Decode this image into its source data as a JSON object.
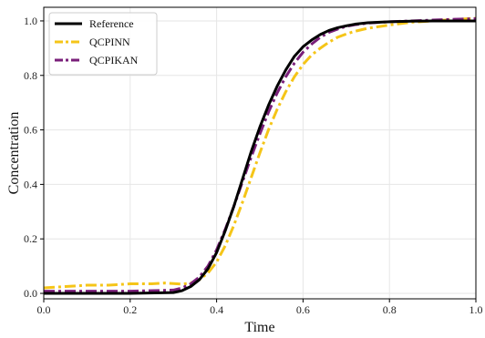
{
  "chart_data": {
    "type": "line",
    "title": "",
    "xlabel": "Time",
    "ylabel": "Concentration",
    "xlim": [
      0.0,
      1.0
    ],
    "ylim": [
      -0.02,
      1.05
    ],
    "xticks": [
      "0.0",
      "0.2",
      "0.4",
      "0.6",
      "0.8",
      "1.0"
    ],
    "yticks": [
      "0.0",
      "0.2",
      "0.4",
      "0.6",
      "0.8",
      "1.0"
    ],
    "grid": true,
    "legend_position": "top-left",
    "series": [
      {
        "name": "Reference",
        "color": "#000000",
        "style": "solid",
        "x": [
          0.0,
          0.1,
          0.2,
          0.3,
          0.32,
          0.34,
          0.36,
          0.38,
          0.4,
          0.42,
          0.44,
          0.46,
          0.48,
          0.5,
          0.52,
          0.54,
          0.56,
          0.58,
          0.6,
          0.62,
          0.64,
          0.66,
          0.68,
          0.7,
          0.72,
          0.75,
          0.8,
          0.85,
          0.9,
          1.0
        ],
        "y": [
          0.0,
          0.0,
          0.0,
          0.003,
          0.01,
          0.025,
          0.05,
          0.09,
          0.15,
          0.23,
          0.32,
          0.42,
          0.52,
          0.61,
          0.69,
          0.76,
          0.82,
          0.87,
          0.905,
          0.93,
          0.95,
          0.965,
          0.975,
          0.982,
          0.988,
          0.993,
          0.997,
          0.999,
          1.0,
          1.0
        ]
      },
      {
        "name": "QCPINN",
        "color": "#f5c518",
        "style": "dashdot",
        "x": [
          0.0,
          0.05,
          0.1,
          0.15,
          0.2,
          0.25,
          0.28,
          0.3,
          0.32,
          0.34,
          0.36,
          0.38,
          0.4,
          0.42,
          0.44,
          0.46,
          0.48,
          0.5,
          0.52,
          0.54,
          0.56,
          0.58,
          0.6,
          0.62,
          0.64,
          0.66,
          0.68,
          0.7,
          0.72,
          0.75,
          0.8,
          0.85,
          0.9,
          0.95,
          1.0
        ],
        "y": [
          0.02,
          0.025,
          0.03,
          0.03,
          0.035,
          0.035,
          0.038,
          0.036,
          0.034,
          0.038,
          0.05,
          0.075,
          0.115,
          0.175,
          0.25,
          0.335,
          0.425,
          0.515,
          0.6,
          0.675,
          0.74,
          0.795,
          0.84,
          0.875,
          0.9,
          0.922,
          0.94,
          0.952,
          0.962,
          0.973,
          0.985,
          0.995,
          1.0,
          1.005,
          1.01
        ]
      },
      {
        "name": "QCPIKAN",
        "color": "#7a1f7a",
        "style": "dashdot",
        "x": [
          0.0,
          0.1,
          0.2,
          0.3,
          0.32,
          0.34,
          0.36,
          0.38,
          0.4,
          0.42,
          0.44,
          0.46,
          0.48,
          0.5,
          0.52,
          0.54,
          0.56,
          0.58,
          0.6,
          0.62,
          0.64,
          0.66,
          0.68,
          0.7,
          0.72,
          0.75,
          0.8,
          0.85,
          0.9,
          0.95,
          1.0
        ],
        "y": [
          0.008,
          0.008,
          0.008,
          0.012,
          0.02,
          0.035,
          0.06,
          0.1,
          0.16,
          0.235,
          0.32,
          0.41,
          0.5,
          0.585,
          0.665,
          0.735,
          0.795,
          0.845,
          0.885,
          0.915,
          0.94,
          0.958,
          0.97,
          0.98,
          0.986,
          0.992,
          0.997,
          1.0,
          1.003,
          1.006,
          1.008
        ]
      }
    ]
  }
}
